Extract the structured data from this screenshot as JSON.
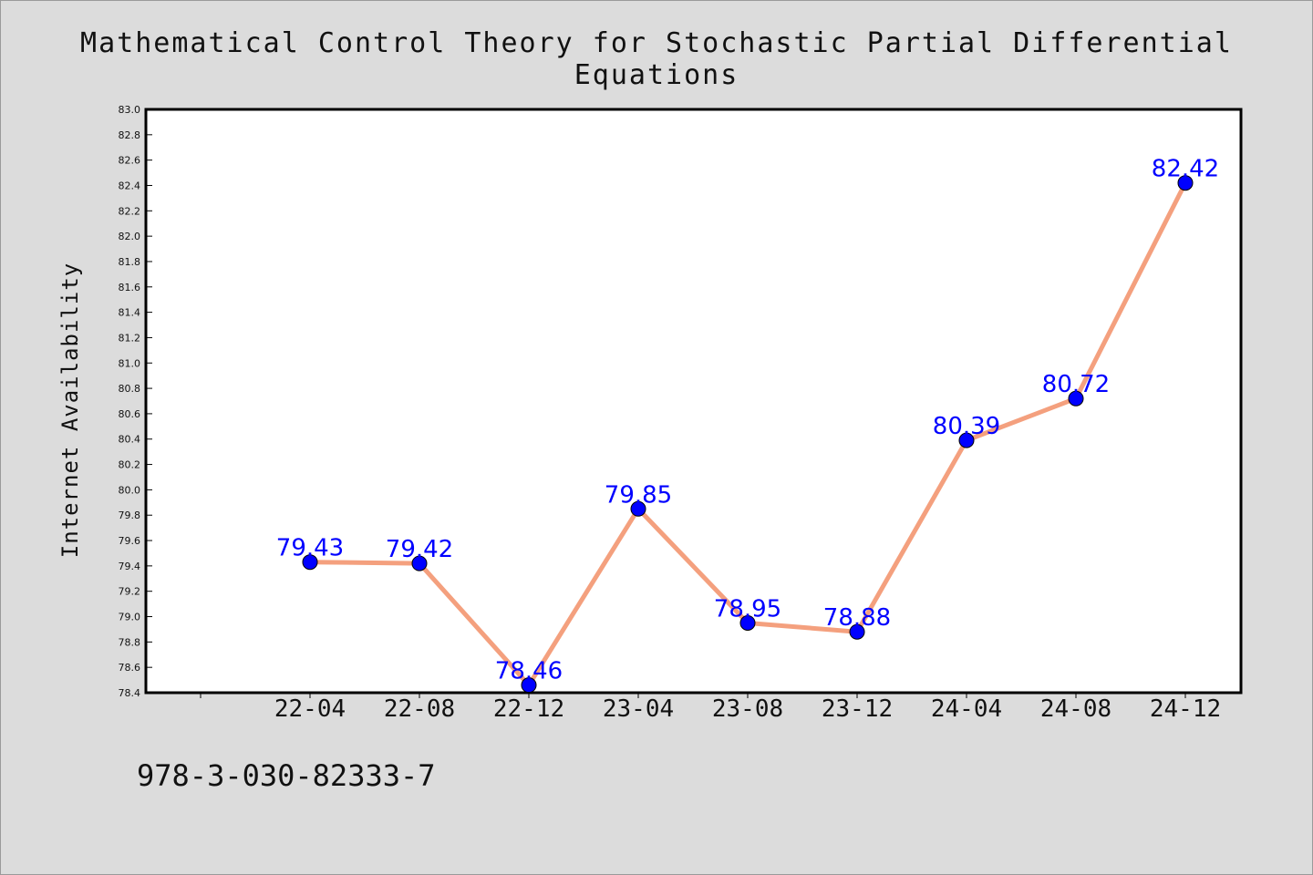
{
  "chart_data": {
    "type": "line",
    "title": "Mathematical Control Theory for Stochastic Partial Differential Equations",
    "xlabel": "",
    "ylabel": "Internet Availability",
    "categories": [
      "22-04",
      "22-08",
      "22-12",
      "23-04",
      "23-08",
      "23-12",
      "24-04",
      "24-08",
      "24-12"
    ],
    "series": [
      {
        "values": [
          79.43,
          79.42,
          78.46,
          79.85,
          78.95,
          78.88,
          80.39,
          80.72,
          82.42
        ],
        "labels": [
          "79.43",
          "79.42",
          "78.46",
          "79.85",
          "78.95",
          "78.88",
          "80.39",
          "80.72",
          "82.42"
        ],
        "line_color": "#f4a07e",
        "marker_color": "#0000ff"
      }
    ],
    "ylim": [
      78.4,
      83.0
    ],
    "yticks": [
      "78.4",
      "78.6",
      "78.8",
      "79.0",
      "79.2",
      "79.4",
      "79.6",
      "79.8",
      "80.0",
      "80.2",
      "80.4",
      "80.6",
      "80.8",
      "81.0",
      "81.2",
      "81.4",
      "81.6",
      "81.8",
      "82.0",
      "82.2",
      "82.4",
      "82.6",
      "82.8",
      "83.0"
    ],
    "grid": false,
    "legend": "none"
  },
  "footer": {
    "text": "978-3-030-82333-7"
  }
}
